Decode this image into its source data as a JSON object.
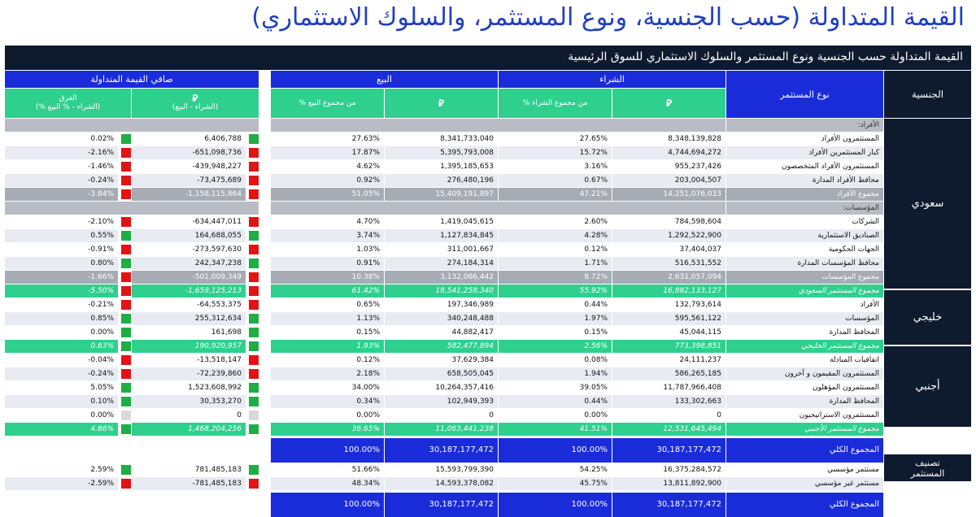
{
  "title": "القيمة المتداولة (حسب الجنسية، ونوع المستثمر، والسلوك الاستثماري)",
  "banner": "القيمة المتداولة حسب الجنسية ونوع المستثمر والسلوك الاستثماري للسوق الرئيسية",
  "headers": {
    "nationality": "الجنسية",
    "investor_type": "نوع المستثمر",
    "buy": "الشراء",
    "sell": "البيع",
    "net": "صافي القيمة المتداولة",
    "sar_symbol": "⃁",
    "buy_pct": "% من مجموع الشراء",
    "sell_pct": "% من مجموع البيع",
    "net_value": "(الشراء - البيع)",
    "net_diff_line1": "الفرق",
    "net_diff_line2": "(% الشراء - % البيع)"
  },
  "nationalities": [
    "سعودي",
    "خليجي",
    "أجنبي",
    "تصنيف المستثمر"
  ],
  "rows": [
    {
      "kind": "header",
      "label": "الأفراد:"
    },
    {
      "kind": "odd",
      "label": "المستثمرون الأفراد",
      "buy": "8,348,139,828",
      "buy_pct": "27.65%",
      "sell": "8,341,733,040",
      "sell_pct": "27.63%",
      "net": "6,406,788",
      "diff": "0.02%",
      "s1": "green",
      "s2": "green"
    },
    {
      "kind": "even",
      "label": "كبار المستثمرين الأفراد",
      "buy": "4,744,694,272",
      "buy_pct": "15.72%",
      "sell": "5,395,793,008",
      "sell_pct": "17.87%",
      "net": "-651,098,736",
      "diff": "-2.16%",
      "s1": "red",
      "s2": "red"
    },
    {
      "kind": "odd",
      "label": "المستثمرون الأفراد المتخصصون",
      "buy": "955,237,426",
      "buy_pct": "3.16%",
      "sell": "1,395,185,653",
      "sell_pct": "4.62%",
      "net": "-439,948,227",
      "diff": "-1.46%",
      "s1": "red",
      "s2": "red"
    },
    {
      "kind": "even",
      "label": "محافظ الأفراد المدارة",
      "buy": "203,004,507",
      "buy_pct": "0.67%",
      "sell": "276,480,196",
      "sell_pct": "0.92%",
      "net": "-73,475,689",
      "diff": "-0.24%",
      "s1": "red",
      "s2": "red"
    },
    {
      "kind": "subtotal",
      "label": "مجموع الأفراد",
      "buy": "14,251,076,033",
      "buy_pct": "47.21%",
      "sell": "15,409,191,897",
      "sell_pct": "51.05%",
      "net": "-1,158,115,864",
      "diff": "-3.84%",
      "s1": "red",
      "s2": "red"
    },
    {
      "kind": "header",
      "label": "المؤسسات:"
    },
    {
      "kind": "odd",
      "label": "الشركات",
      "buy": "784,598,604",
      "buy_pct": "2.60%",
      "sell": "1,419,045,615",
      "sell_pct": "4.70%",
      "net": "-634,447,011",
      "diff": "-2.10%",
      "s1": "red",
      "s2": "red"
    },
    {
      "kind": "even",
      "label": "الصناديق الاستثمارية",
      "buy": "1,292,522,900",
      "buy_pct": "4.28%",
      "sell": "1,127,834,845",
      "sell_pct": "3.74%",
      "net": "164,688,055",
      "diff": "0.55%",
      "s1": "green",
      "s2": "green"
    },
    {
      "kind": "odd",
      "label": "الجهات الحكومية",
      "buy": "37,404,037",
      "buy_pct": "0.12%",
      "sell": "311,001,667",
      "sell_pct": "1.03%",
      "net": "-273,597,630",
      "diff": "-0.91%",
      "s1": "red",
      "s2": "red"
    },
    {
      "kind": "even",
      "label": "محافظ المؤسسات المدارة",
      "buy": "516,531,552",
      "buy_pct": "1.71%",
      "sell": "274,184,314",
      "sell_pct": "0.91%",
      "net": "242,347,238",
      "diff": "0.80%",
      "s1": "green",
      "s2": "green"
    },
    {
      "kind": "subtotal",
      "label": "مجموع المؤسسات",
      "buy": "2,631,057,094",
      "buy_pct": "8.72%",
      "sell": "3,132,066,442",
      "sell_pct": "10.38%",
      "net": "-501,009,349",
      "diff": "-1.66%",
      "s1": "red",
      "s2": "red"
    },
    {
      "kind": "nattotal",
      "label": "مجموع المستثمر السعودي",
      "buy": "16,882,133,127",
      "buy_pct": "55.92%",
      "sell": "18,541,258,340",
      "sell_pct": "61.42%",
      "net": "-1,659,125,213",
      "diff": "-5.50%",
      "s1": "red",
      "s2": "red"
    },
    {
      "kind": "odd",
      "label": "الأفراد",
      "buy": "132,793,614",
      "buy_pct": "0.44%",
      "sell": "197,346,989",
      "sell_pct": "0.65%",
      "net": "-64,553,375",
      "diff": "-0.21%",
      "s1": "red",
      "s2": "red"
    },
    {
      "kind": "even",
      "label": "المؤسسات",
      "buy": "595,561,122",
      "buy_pct": "1.97%",
      "sell": "340,248,488",
      "sell_pct": "1.13%",
      "net": "255,312,634",
      "diff": "0.85%",
      "s1": "green",
      "s2": "green"
    },
    {
      "kind": "odd",
      "label": "المحافظ المدارة",
      "buy": "45,044,115",
      "buy_pct": "0.15%",
      "sell": "44,882,417",
      "sell_pct": "0.15%",
      "net": "161,698",
      "diff": "0.00%",
      "s1": "green",
      "s2": "green"
    },
    {
      "kind": "nattotal",
      "label": "مجموع المستثمر الخليجي",
      "buy": "773,398,851",
      "buy_pct": "2.56%",
      "sell": "582,477,894",
      "sell_pct": "1.93%",
      "net": "190,920,957",
      "diff": "0.63%",
      "s1": "green",
      "s2": "green"
    },
    {
      "kind": "odd",
      "label": "اتفاقيات المبادلة",
      "buy": "24,111,237",
      "buy_pct": "0.08%",
      "sell": "37,629,384",
      "sell_pct": "0.12%",
      "net": "-13,518,147",
      "diff": "-0.04%",
      "s1": "red",
      "s2": "red"
    },
    {
      "kind": "even",
      "label": "المستثمرون المقيمون و آخرون",
      "buy": "586,265,185",
      "buy_pct": "1.94%",
      "sell": "658,505,045",
      "sell_pct": "2.18%",
      "net": "-72,239,860",
      "diff": "-0.24%",
      "s1": "red",
      "s2": "red"
    },
    {
      "kind": "odd",
      "label": "المستثمرون المؤهلون",
      "buy": "11,787,966,408",
      "buy_pct": "39.05%",
      "sell": "10,264,357,416",
      "sell_pct": "34.00%",
      "net": "1,523,608,992",
      "diff": "5.05%",
      "s1": "green",
      "s2": "green"
    },
    {
      "kind": "even",
      "label": "المحافظ المدارة",
      "buy": "133,302,663",
      "buy_pct": "0.44%",
      "sell": "102,949,393",
      "sell_pct": "0.34%",
      "net": "30,353,270",
      "diff": "0.10%",
      "s1": "green",
      "s2": "green"
    },
    {
      "kind": "odd",
      "label": "المستثمرون الاستراتيجيون",
      "buy": "0",
      "buy_pct": "0.00%",
      "sell": "0",
      "sell_pct": "0.00%",
      "net": "0",
      "diff": "0.00%",
      "s1": "none",
      "s2": "none"
    },
    {
      "kind": "nattotal",
      "label": "مجموع المستثمر الأجنبي",
      "buy": "12,531,645,494",
      "buy_pct": "41.51%",
      "sell": "11,063,441,238",
      "sell_pct": "36.65%",
      "net": "1,468,204,256",
      "diff": "4.86%",
      "s1": "green",
      "s2": "green"
    },
    {
      "kind": "grand",
      "label": "المجموع الكلي",
      "buy": "30,187,177,472",
      "buy_pct": "100.00%",
      "sell": "30,187,177,472",
      "sell_pct": "100.00%"
    },
    {
      "kind": "white",
      "label": "مستثمر مؤسسي",
      "buy": "16,375,284,572",
      "buy_pct": "54.25%",
      "sell": "15,593,799,390",
      "sell_pct": "51.66%",
      "net": "781,485,183",
      "diff": "2.59%",
      "s1": "green",
      "s2": "green"
    },
    {
      "kind": "even",
      "label": "مستثمر غير مؤسسي",
      "buy": "13,811,892,900",
      "buy_pct": "45.75%",
      "sell": "14,593,378,082",
      "sell_pct": "48.34%",
      "net": "-781,485,183",
      "diff": "-2.59%",
      "s1": "red",
      "s2": "red"
    },
    {
      "kind": "grand",
      "label": "المجموع الكلي",
      "buy": "30,187,177,472",
      "buy_pct": "100.00%",
      "sell": "30,187,177,472",
      "sell_pct": "100.00%"
    }
  ],
  "colors": {
    "title": "#1f3fbf",
    "dark": "#0e1a2e",
    "blue": "#1a2cd9",
    "green_header": "#2fcf8e",
    "positive": "#1fad45",
    "negative": "#e01414"
  }
}
